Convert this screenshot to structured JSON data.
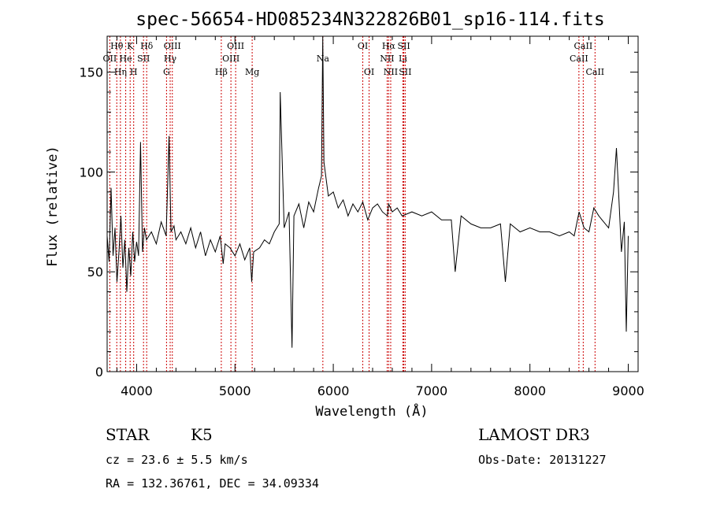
{
  "chart_data": {
    "type": "line",
    "title": "spec-56654-HD085234N322826B01_sp16-114.fits",
    "xlabel": "Wavelength (Å)",
    "ylabel": "Flux (relative)",
    "xlim": [
      3700,
      9100
    ],
    "ylim": [
      0,
      168
    ],
    "xticks": [
      4000,
      5000,
      6000,
      7000,
      8000,
      9000
    ],
    "yticks": [
      0,
      50,
      100,
      150
    ],
    "grid": false,
    "series": [
      {
        "color": "#000000",
        "x": [
          3700,
          3720,
          3740,
          3760,
          3780,
          3800,
          3820,
          3840,
          3860,
          3880,
          3900,
          3920,
          3940,
          3960,
          3980,
          4000,
          4020,
          4040,
          4060,
          4080,
          4100,
          4150,
          4200,
          4250,
          4300,
          4330,
          4350,
          4380,
          4400,
          4450,
          4500,
          4550,
          4600,
          4650,
          4700,
          4750,
          4800,
          4850,
          4880,
          4900,
          4950,
          5000,
          5050,
          5100,
          5150,
          5170,
          5190,
          5250,
          5300,
          5350,
          5400,
          5450,
          5460,
          5500,
          5550,
          5580,
          5600,
          5650,
          5700,
          5750,
          5800,
          5850,
          5880,
          5893,
          5905,
          5950,
          6000,
          6050,
          6100,
          6150,
          6200,
          6250,
          6300,
          6350,
          6400,
          6450,
          6500,
          6550,
          6563,
          6600,
          6650,
          6700,
          6800,
          6900,
          7000,
          7100,
          7200,
          7240,
          7300,
          7400,
          7500,
          7600,
          7700,
          7750,
          7800,
          7900,
          8000,
          8100,
          8200,
          8300,
          8400,
          8450,
          8500,
          8550,
          8600,
          8650,
          8700,
          8750,
          8800,
          8850,
          8880,
          8900,
          8930,
          8960,
          8980,
          9000
        ],
        "y": [
          68,
          55,
          92,
          58,
          72,
          45,
          60,
          78,
          52,
          66,
          40,
          62,
          48,
          70,
          55,
          65,
          58,
          115,
          60,
          72,
          66,
          70,
          64,
          75,
          68,
          118,
          70,
          73,
          66,
          70,
          64,
          72,
          62,
          70,
          58,
          66,
          60,
          68,
          54,
          64,
          62,
          58,
          64,
          56,
          62,
          45,
          60,
          62,
          66,
          64,
          70,
          74,
          140,
          72,
          80,
          12,
          78,
          84,
          72,
          85,
          80,
          92,
          98,
          168,
          105,
          88,
          90,
          82,
          86,
          78,
          84,
          80,
          85,
          76,
          82,
          84,
          80,
          78,
          84,
          80,
          82,
          78,
          80,
          78,
          80,
          76,
          76,
          50,
          78,
          74,
          72,
          72,
          74,
          45,
          74,
          70,
          72,
          70,
          70,
          68,
          70,
          68,
          80,
          72,
          70,
          82,
          78,
          75,
          72,
          90,
          112,
          92,
          60,
          75,
          20,
          68
        ]
      }
    ],
    "spectral_lines": [
      {
        "label": "Hθ",
        "x": 3798,
        "row": 1
      },
      {
        "label": "OII",
        "x": 3727,
        "row": 2
      },
      {
        "label": "Hη",
        "x": 3835,
        "row": 3
      },
      {
        "label": "He",
        "x": 3889,
        "row": 2
      },
      {
        "label": "K",
        "x": 3934,
        "row": 1
      },
      {
        "label": "H",
        "x": 3970,
        "row": 3
      },
      {
        "label": "SII",
        "x": 4070,
        "row": 2
      },
      {
        "label": "Hδ",
        "x": 4102,
        "row": 1
      },
      {
        "label": "G",
        "x": 4304,
        "row": 3
      },
      {
        "label": "Hγ",
        "x": 4341,
        "row": 2
      },
      {
        "label": "OIII",
        "x": 4363,
        "row": 1
      },
      {
        "label": "Hβ",
        "x": 4861,
        "row": 3
      },
      {
        "label": "OIII",
        "x": 4959,
        "row": 2
      },
      {
        "label": "OIII",
        "x": 5007,
        "row": 1
      },
      {
        "label": "Mg",
        "x": 5175,
        "row": 3
      },
      {
        "label": "Na",
        "x": 5894,
        "row": 2
      },
      {
        "label": "OI",
        "x": 6300,
        "row": 1
      },
      {
        "label": "OI",
        "x": 6364,
        "row": 3
      },
      {
        "label": "NII",
        "x": 6548,
        "row": 2
      },
      {
        "label": "Hα",
        "x": 6563,
        "row": 1
      },
      {
        "label": "NII",
        "x": 6584,
        "row": 3
      },
      {
        "label": "Li",
        "x": 6708,
        "row": 2
      },
      {
        "label": "SII",
        "x": 6717,
        "row": 1
      },
      {
        "label": "SII",
        "x": 6731,
        "row": 3
      },
      {
        "label": "CaII",
        "x": 8498,
        "row": 2
      },
      {
        "label": "CaII",
        "x": 8542,
        "row": 1
      },
      {
        "label": "CaII",
        "x": 8662,
        "row": 3
      }
    ],
    "line_marker_color": "#cc0000"
  },
  "info": {
    "class_label": "STAR",
    "subclass": "K5",
    "survey": "LAMOST DR3",
    "cz": "cz = 23.6 ± 5.5 km/s",
    "obs_date": "Obs-Date: 20131227",
    "radec": "RA = 132.36761, DEC =  34.09334"
  }
}
